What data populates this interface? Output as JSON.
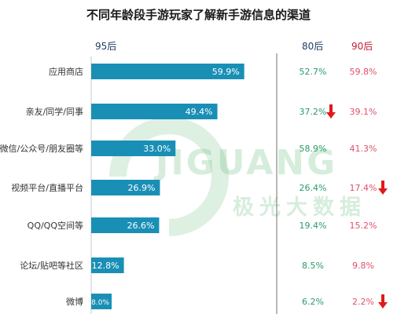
{
  "title": "不同年龄段手游玩家了解新手游信息的渠道",
  "watermark": {
    "brand": "JIGUANG",
    "brand_cn": "极光大数据"
  },
  "colors": {
    "bar": "#1a8fb6",
    "arrow": "#e01a1a",
    "col80": "#2a9a6a",
    "col90": "#e0506a",
    "divider": "#888888"
  },
  "chart_data": {
    "type": "bar",
    "orientation": "horizontal",
    "title": "不同年龄段手游玩家了解新手游信息的渠道",
    "categories": [
      "应用商店",
      "亲友/同学/同事",
      "微信/公众号/朋友圈等",
      "视频平台/直播平台",
      "QQ/QQ空间等",
      "论坛/贴吧等社区",
      "微博"
    ],
    "series": [
      {
        "name": "95后",
        "values": [
          59.9,
          49.4,
          33.0,
          26.9,
          26.6,
          12.8,
          8.0
        ],
        "labels": [
          "59.9%",
          "49.4%",
          "33.0%",
          "26.9%",
          "26.6%",
          "12.8%",
          "8.0%"
        ]
      },
      {
        "name": "80后",
        "values": [
          52.7,
          37.2,
          58.9,
          26.4,
          19.4,
          8.5,
          6.2
        ],
        "labels": [
          "52.7%",
          "37.2%",
          "58.9%",
          "26.4%",
          "19.4%",
          "8.5%",
          "6.2%"
        ]
      },
      {
        "name": "90后",
        "values": [
          59.8,
          39.1,
          41.3,
          17.4,
          15.2,
          9.8,
          2.2
        ],
        "labels": [
          "59.8%",
          "39.1%",
          "41.3%",
          "17.4%",
          "15.2%",
          "9.8%",
          "2.2%"
        ]
      }
    ],
    "down_arrows": [
      {
        "series": "80后",
        "category": "亲友/同学/同事"
      },
      {
        "series": "90后",
        "category": "视频平台/直播平台"
      },
      {
        "series": "90后",
        "category": "微博"
      }
    ],
    "xlim": [
      0,
      70
    ]
  }
}
